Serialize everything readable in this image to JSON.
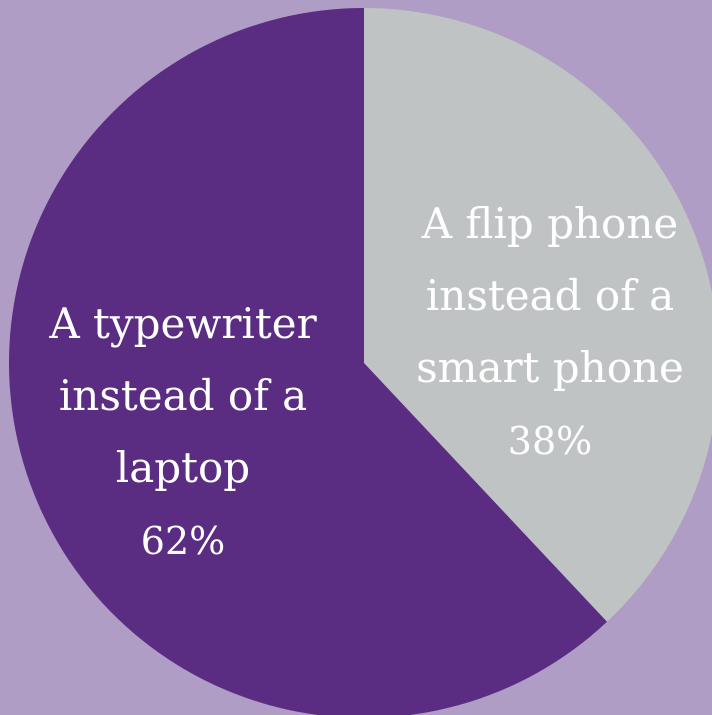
{
  "chart_data": {
    "type": "pie",
    "title": "",
    "start": "12 o'clock",
    "direction": "clockwise",
    "slices": [
      {
        "name": "A flip phone instead of a smart phone",
        "label_lines": [
          "A flip phone",
          "instead of a",
          "smart phone"
        ],
        "value": 38,
        "value_label": "38%",
        "color": "#c0c3c4"
      },
      {
        "name": "A typewriter instead of a laptop",
        "label_lines": [
          "A typewriter",
          "instead of a",
          "laptop"
        ],
        "value": 62,
        "value_label": "62%",
        "color": "#5a2d83"
      }
    ]
  },
  "colors": {
    "background": "#b09dc6",
    "label_text": "#ffffff"
  }
}
